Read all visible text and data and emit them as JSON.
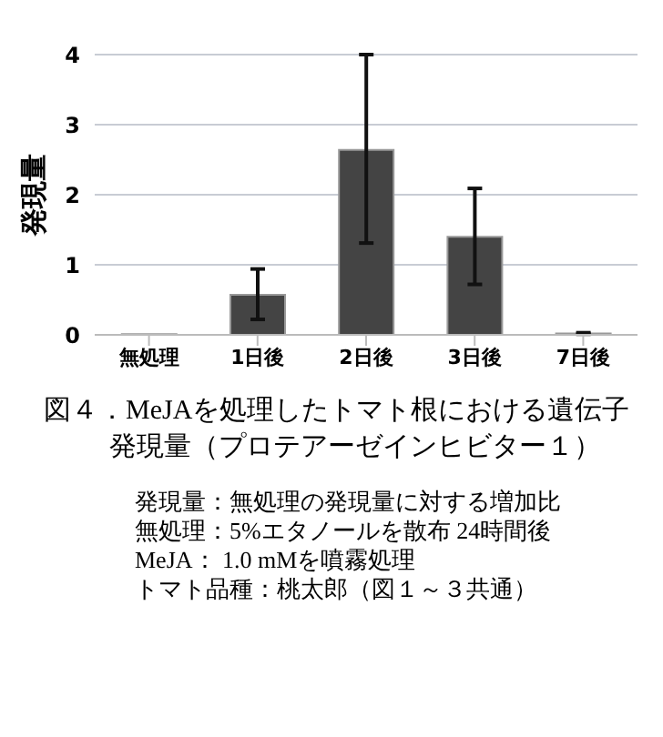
{
  "chart_data": {
    "type": "bar",
    "title": "図４．MeJAを処理したトマト根における遺伝子発現量（プロテアーゼインヒビター１）",
    "ylabel": "発現量",
    "categories": [
      "無処理",
      "1日後",
      "2日後",
      "3日後",
      "7日後"
    ],
    "values": [
      0.01,
      0.57,
      2.64,
      1.4,
      0.02
    ],
    "errors": [
      null,
      [
        0.22,
        0.94
      ],
      [
        1.31,
        4.0
      ],
      [
        0.72,
        2.09
      ],
      [
        0.01,
        0.03
      ]
    ],
    "color": "#444444",
    "ylim": [
      0,
      4
    ],
    "yticks": [
      0,
      1,
      2,
      3,
      4
    ],
    "grid": "y",
    "annotations": [
      "発現量：無処理の発現量に対する増加比",
      "無処理：5%エタノールを散布 24時間後",
      "MeJA： 1.0 mMを噴霧処理",
      "トマト品種：桃太郎（図１～３共通）"
    ]
  }
}
